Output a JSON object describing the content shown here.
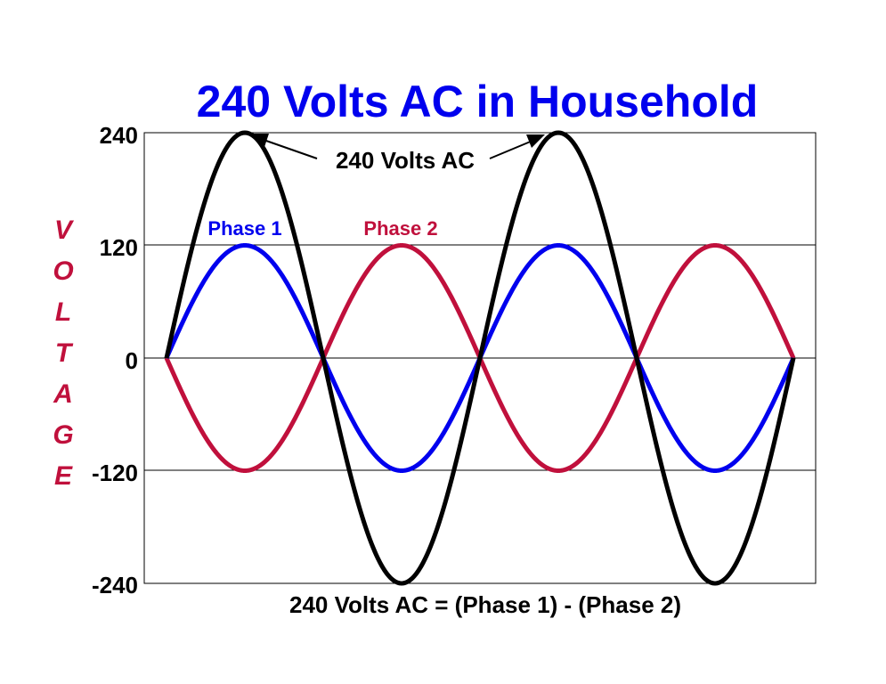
{
  "chart_data": {
    "type": "line",
    "title": "240 Volts AC in Household",
    "xlabel": "240 Volts AC = (Phase 1) - (Phase 2)",
    "ylabel": "VOLTAGE",
    "ylim": [
      -240,
      240
    ],
    "yticks": [
      "240",
      "120",
      "0",
      "-120",
      "-240"
    ],
    "grid": true,
    "x": [
      0,
      0.25,
      0.5,
      0.75,
      1,
      1.25,
      1.5,
      1.75,
      2,
      2.25,
      2.5,
      2.75,
      3,
      3.25,
      3.5,
      3.75,
      4
    ],
    "series": [
      {
        "name": "Phase 1",
        "color": "#0000EE",
        "values": [
          0,
          85,
          120,
          85,
          0,
          -85,
          -120,
          -85,
          0,
          85,
          120,
          85,
          0,
          -85,
          -120,
          -85,
          0
        ]
      },
      {
        "name": "Phase 2",
        "color": "#C0103C",
        "values": [
          0,
          -85,
          -120,
          -85,
          0,
          85,
          120,
          85,
          0,
          -85,
          -120,
          -85,
          0,
          85,
          120,
          85,
          0
        ]
      },
      {
        "name": "",
        "color": "#000000",
        "values": [
          0,
          170,
          240,
          170,
          0,
          -170,
          -240,
          -170,
          0,
          170,
          240,
          170,
          0,
          -170,
          -240,
          -170,
          0
        ]
      }
    ],
    "annotation": "240 Volts AC"
  },
  "colors": {
    "title": "#0000EE",
    "ylabel": "#C0103C",
    "phase1": "#0000EE",
    "phase2": "#C0103C",
    "total": "#000000"
  }
}
